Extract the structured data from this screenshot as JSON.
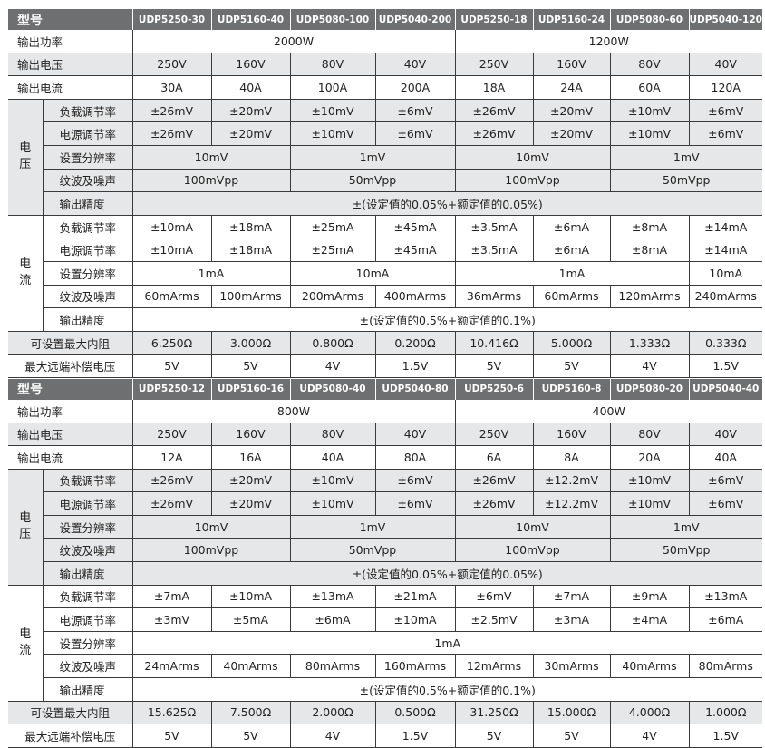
{
  "tables": [
    {
      "model_title": "型号",
      "models": [
        "UDP5250-30",
        "UDP5160-40",
        "UDP5080-100",
        "UDP5040-200",
        "UDP5250-18",
        "UDP5160-24",
        "UDP5080-60",
        "UDP5040-120"
      ],
      "sections": [
        {
          "label": "输出功率",
          "cells": [
            {
              "v": "2000W",
              "span": 4
            },
            {
              "v": "1200W",
              "span": 4
            }
          ]
        },
        {
          "label": "输出电压",
          "cells": [
            {
              "v": "250V"
            },
            {
              "v": "160V"
            },
            {
              "v": "80V"
            },
            {
              "v": "40V"
            },
            {
              "v": "250V"
            },
            {
              "v": "160V"
            },
            {
              "v": "80V"
            },
            {
              "v": "40V"
            }
          ]
        },
        {
          "label": "输出电流",
          "cells": [
            {
              "v": "30A"
            },
            {
              "v": "40A"
            },
            {
              "v": "100A"
            },
            {
              "v": "200A"
            },
            {
              "v": "18A"
            },
            {
              "v": "24A"
            },
            {
              "v": "60A"
            },
            {
              "v": "120A"
            }
          ]
        },
        {
          "group": "电压",
          "rows": [
            {
              "label": "负载调节率",
              "cells": [
                {
                  "v": "±26mV"
                },
                {
                  "v": "±20mV"
                },
                {
                  "v": "±10mV"
                },
                {
                  "v": "±6mV"
                },
                {
                  "v": "±26mV"
                },
                {
                  "v": "±20mV"
                },
                {
                  "v": "±10mV"
                },
                {
                  "v": "±6mV"
                }
              ]
            },
            {
              "label": "电源调节率",
              "cells": [
                {
                  "v": "±26mV"
                },
                {
                  "v": "±20mV"
                },
                {
                  "v": "±10mV"
                },
                {
                  "v": "±6mV"
                },
                {
                  "v": "±26mV"
                },
                {
                  "v": "±20mV"
                },
                {
                  "v": "±10mV"
                },
                {
                  "v": "±6mV"
                }
              ]
            },
            {
              "label": "设置分辨率",
              "cells": [
                {
                  "v": "10mV",
                  "span": 2
                },
                {
                  "v": "1mV",
                  "span": 2
                },
                {
                  "v": "10mV",
                  "span": 2
                },
                {
                  "v": "1mV",
                  "span": 2
                }
              ]
            },
            {
              "label": "纹波及噪声",
              "cells": [
                {
                  "v": "100mVpp",
                  "span": 2
                },
                {
                  "v": "50mVpp",
                  "span": 2
                },
                {
                  "v": "100mVpp",
                  "span": 2
                },
                {
                  "v": "50mVpp",
                  "span": 2
                }
              ]
            },
            {
              "label": "输出精度",
              "cells": [
                {
                  "v": "±(设定值的0.05%+额定值的0.05%)",
                  "span": 8
                }
              ]
            }
          ]
        },
        {
          "group": "电流",
          "rows": [
            {
              "label": "负载调节率",
              "cells": [
                {
                  "v": "±10mA"
                },
                {
                  "v": "±18mA"
                },
                {
                  "v": "±25mA"
                },
                {
                  "v": "±45mA"
                },
                {
                  "v": "±3.5mA"
                },
                {
                  "v": "±6mA"
                },
                {
                  "v": "±8mA"
                },
                {
                  "v": "±14mA"
                }
              ]
            },
            {
              "label": "电源调节率",
              "cells": [
                {
                  "v": "±10mA"
                },
                {
                  "v": "±18mA"
                },
                {
                  "v": "±25mA"
                },
                {
                  "v": "±45mA"
                },
                {
                  "v": "±3.5mA"
                },
                {
                  "v": "±6mA"
                },
                {
                  "v": "±8mA"
                },
                {
                  "v": "±14mA"
                }
              ]
            },
            {
              "label": "设置分辨率",
              "cells": [
                {
                  "v": "1mA",
                  "span": 2
                },
                {
                  "v": "10mA",
                  "span": 2
                },
                {
                  "v": "1mA",
                  "span": 3
                },
                {
                  "v": "10mA"
                }
              ]
            },
            {
              "label": "纹波及噪声",
              "cells": [
                {
                  "v": "60mArms"
                },
                {
                  "v": "100mArms"
                },
                {
                  "v": "200mArms"
                },
                {
                  "v": "400mArms"
                },
                {
                  "v": "36mArms"
                },
                {
                  "v": "60mArms"
                },
                {
                  "v": "120mArms"
                },
                {
                  "v": "240mArms"
                }
              ]
            },
            {
              "label": "输出精度",
              "cells": [
                {
                  "v": "±(设定值的0.5%+额定值的0.1%)",
                  "span": 8
                }
              ]
            }
          ]
        },
        {
          "label": "可设置最大内阻",
          "center": true,
          "cells": [
            {
              "v": "6.250Ω"
            },
            {
              "v": "3.000Ω"
            },
            {
              "v": "0.800Ω"
            },
            {
              "v": "0.200Ω"
            },
            {
              "v": "10.416Ω"
            },
            {
              "v": "5.000Ω"
            },
            {
              "v": "1.333Ω"
            },
            {
              "v": "0.333Ω"
            }
          ]
        },
        {
          "label": "最大远端补偿电压",
          "center": true,
          "cells": [
            {
              "v": "5V"
            },
            {
              "v": "5V"
            },
            {
              "v": "4V"
            },
            {
              "v": "1.5V"
            },
            {
              "v": "5V"
            },
            {
              "v": "5V"
            },
            {
              "v": "4V"
            },
            {
              "v": "1.5V"
            }
          ]
        }
      ]
    },
    {
      "model_title": "型号",
      "models": [
        "UDP5250-12",
        "UDP5160-16",
        "UDP5080-40",
        "UDP5040-80",
        "UDP5250-6",
        "UDP5160-8",
        "UDP5080-20",
        "UDP5040-40"
      ],
      "sections": [
        {
          "label": "输出功率",
          "cells": [
            {
              "v": "800W",
              "span": 4
            },
            {
              "v": "400W",
              "span": 4
            }
          ]
        },
        {
          "label": "输出电压",
          "cells": [
            {
              "v": "250V"
            },
            {
              "v": "160V"
            },
            {
              "v": "80V"
            },
            {
              "v": "40V"
            },
            {
              "v": "250V"
            },
            {
              "v": "160V"
            },
            {
              "v": "80V"
            },
            {
              "v": "40V"
            }
          ]
        },
        {
          "label": "输出电流",
          "cells": [
            {
              "v": "12A"
            },
            {
              "v": "16A"
            },
            {
              "v": "40A"
            },
            {
              "v": "80A"
            },
            {
              "v": "6A"
            },
            {
              "v": "8A"
            },
            {
              "v": "20A"
            },
            {
              "v": "40A"
            }
          ]
        },
        {
          "group": "电压",
          "rows": [
            {
              "label": "负载调节率",
              "cells": [
                {
                  "v": "±26mV"
                },
                {
                  "v": "±20mV"
                },
                {
                  "v": "±10mV"
                },
                {
                  "v": "±6mV"
                },
                {
                  "v": "±26mV"
                },
                {
                  "v": "±12.2mV"
                },
                {
                  "v": "±10mV"
                },
                {
                  "v": "±6mV"
                }
              ]
            },
            {
              "label": "电源调节率",
              "cells": [
                {
                  "v": "±26mV"
                },
                {
                  "v": "±20mV"
                },
                {
                  "v": "±10mV"
                },
                {
                  "v": "±6mV"
                },
                {
                  "v": "±26mV"
                },
                {
                  "v": "±12.2mV"
                },
                {
                  "v": "±10mV"
                },
                {
                  "v": "±6mV"
                }
              ]
            },
            {
              "label": "设置分辨率",
              "cells": [
                {
                  "v": "10mV",
                  "span": 2
                },
                {
                  "v": "1mV",
                  "span": 2
                },
                {
                  "v": "10mV",
                  "span": 2
                },
                {
                  "v": "1mV",
                  "span": 2
                }
              ]
            },
            {
              "label": "纹波及噪声",
              "cells": [
                {
                  "v": "100mVpp",
                  "span": 2
                },
                {
                  "v": "50mVpp",
                  "span": 2
                },
                {
                  "v": "100mVpp",
                  "span": 2
                },
                {
                  "v": "50mVpp",
                  "span": 2
                }
              ]
            },
            {
              "label": "输出精度",
              "cells": [
                {
                  "v": "±(设定值的0.05%+额定值的0.05%)",
                  "span": 8
                }
              ]
            }
          ]
        },
        {
          "group": "电流",
          "rows": [
            {
              "label": "负载调节率",
              "cells": [
                {
                  "v": "±7mA"
                },
                {
                  "v": "±10mA"
                },
                {
                  "v": "±13mA"
                },
                {
                  "v": "±21mA"
                },
                {
                  "v": "±6mV"
                },
                {
                  "v": "±7mA"
                },
                {
                  "v": "±9mA"
                },
                {
                  "v": "±13mA"
                }
              ]
            },
            {
              "label": "电源调节率",
              "cells": [
                {
                  "v": "±3mV"
                },
                {
                  "v": "±5mA"
                },
                {
                  "v": "±6mA"
                },
                {
                  "v": "±10mA"
                },
                {
                  "v": "±2.5mV"
                },
                {
                  "v": "±3mA"
                },
                {
                  "v": "±4mA"
                },
                {
                  "v": "±6mA"
                }
              ]
            },
            {
              "label": "设置分辨率",
              "cells": [
                {
                  "v": "1mA",
                  "span": 8
                }
              ]
            },
            {
              "label": "纹波及噪声",
              "cells": [
                {
                  "v": "24mArms"
                },
                {
                  "v": "40mArms"
                },
                {
                  "v": "80mArms"
                },
                {
                  "v": "160mArms"
                },
                {
                  "v": "12mArms"
                },
                {
                  "v": "30mArms"
                },
                {
                  "v": "40mArms"
                },
                {
                  "v": "80mArms"
                }
              ]
            },
            {
              "label": "输出精度",
              "cells": [
                {
                  "v": "±(设定值的0.5%+额定值的0.1%)",
                  "span": 8
                }
              ]
            }
          ]
        },
        {
          "label": "可设置最大内阻",
          "center": true,
          "cells": [
            {
              "v": "15.625Ω"
            },
            {
              "v": "7.500Ω"
            },
            {
              "v": "2.000Ω"
            },
            {
              "v": "0.500Ω"
            },
            {
              "v": "31.250Ω"
            },
            {
              "v": "15.000Ω"
            },
            {
              "v": "4.000Ω"
            },
            {
              "v": "1.000Ω"
            }
          ]
        },
        {
          "label": "最大远端补偿电压",
          "center": true,
          "cells": [
            {
              "v": "5V"
            },
            {
              "v": "5V"
            },
            {
              "v": "4V"
            },
            {
              "v": "1.5V"
            },
            {
              "v": "5V"
            },
            {
              "v": "5V"
            },
            {
              "v": "4V"
            },
            {
              "v": "1.5V"
            }
          ]
        }
      ]
    }
  ]
}
